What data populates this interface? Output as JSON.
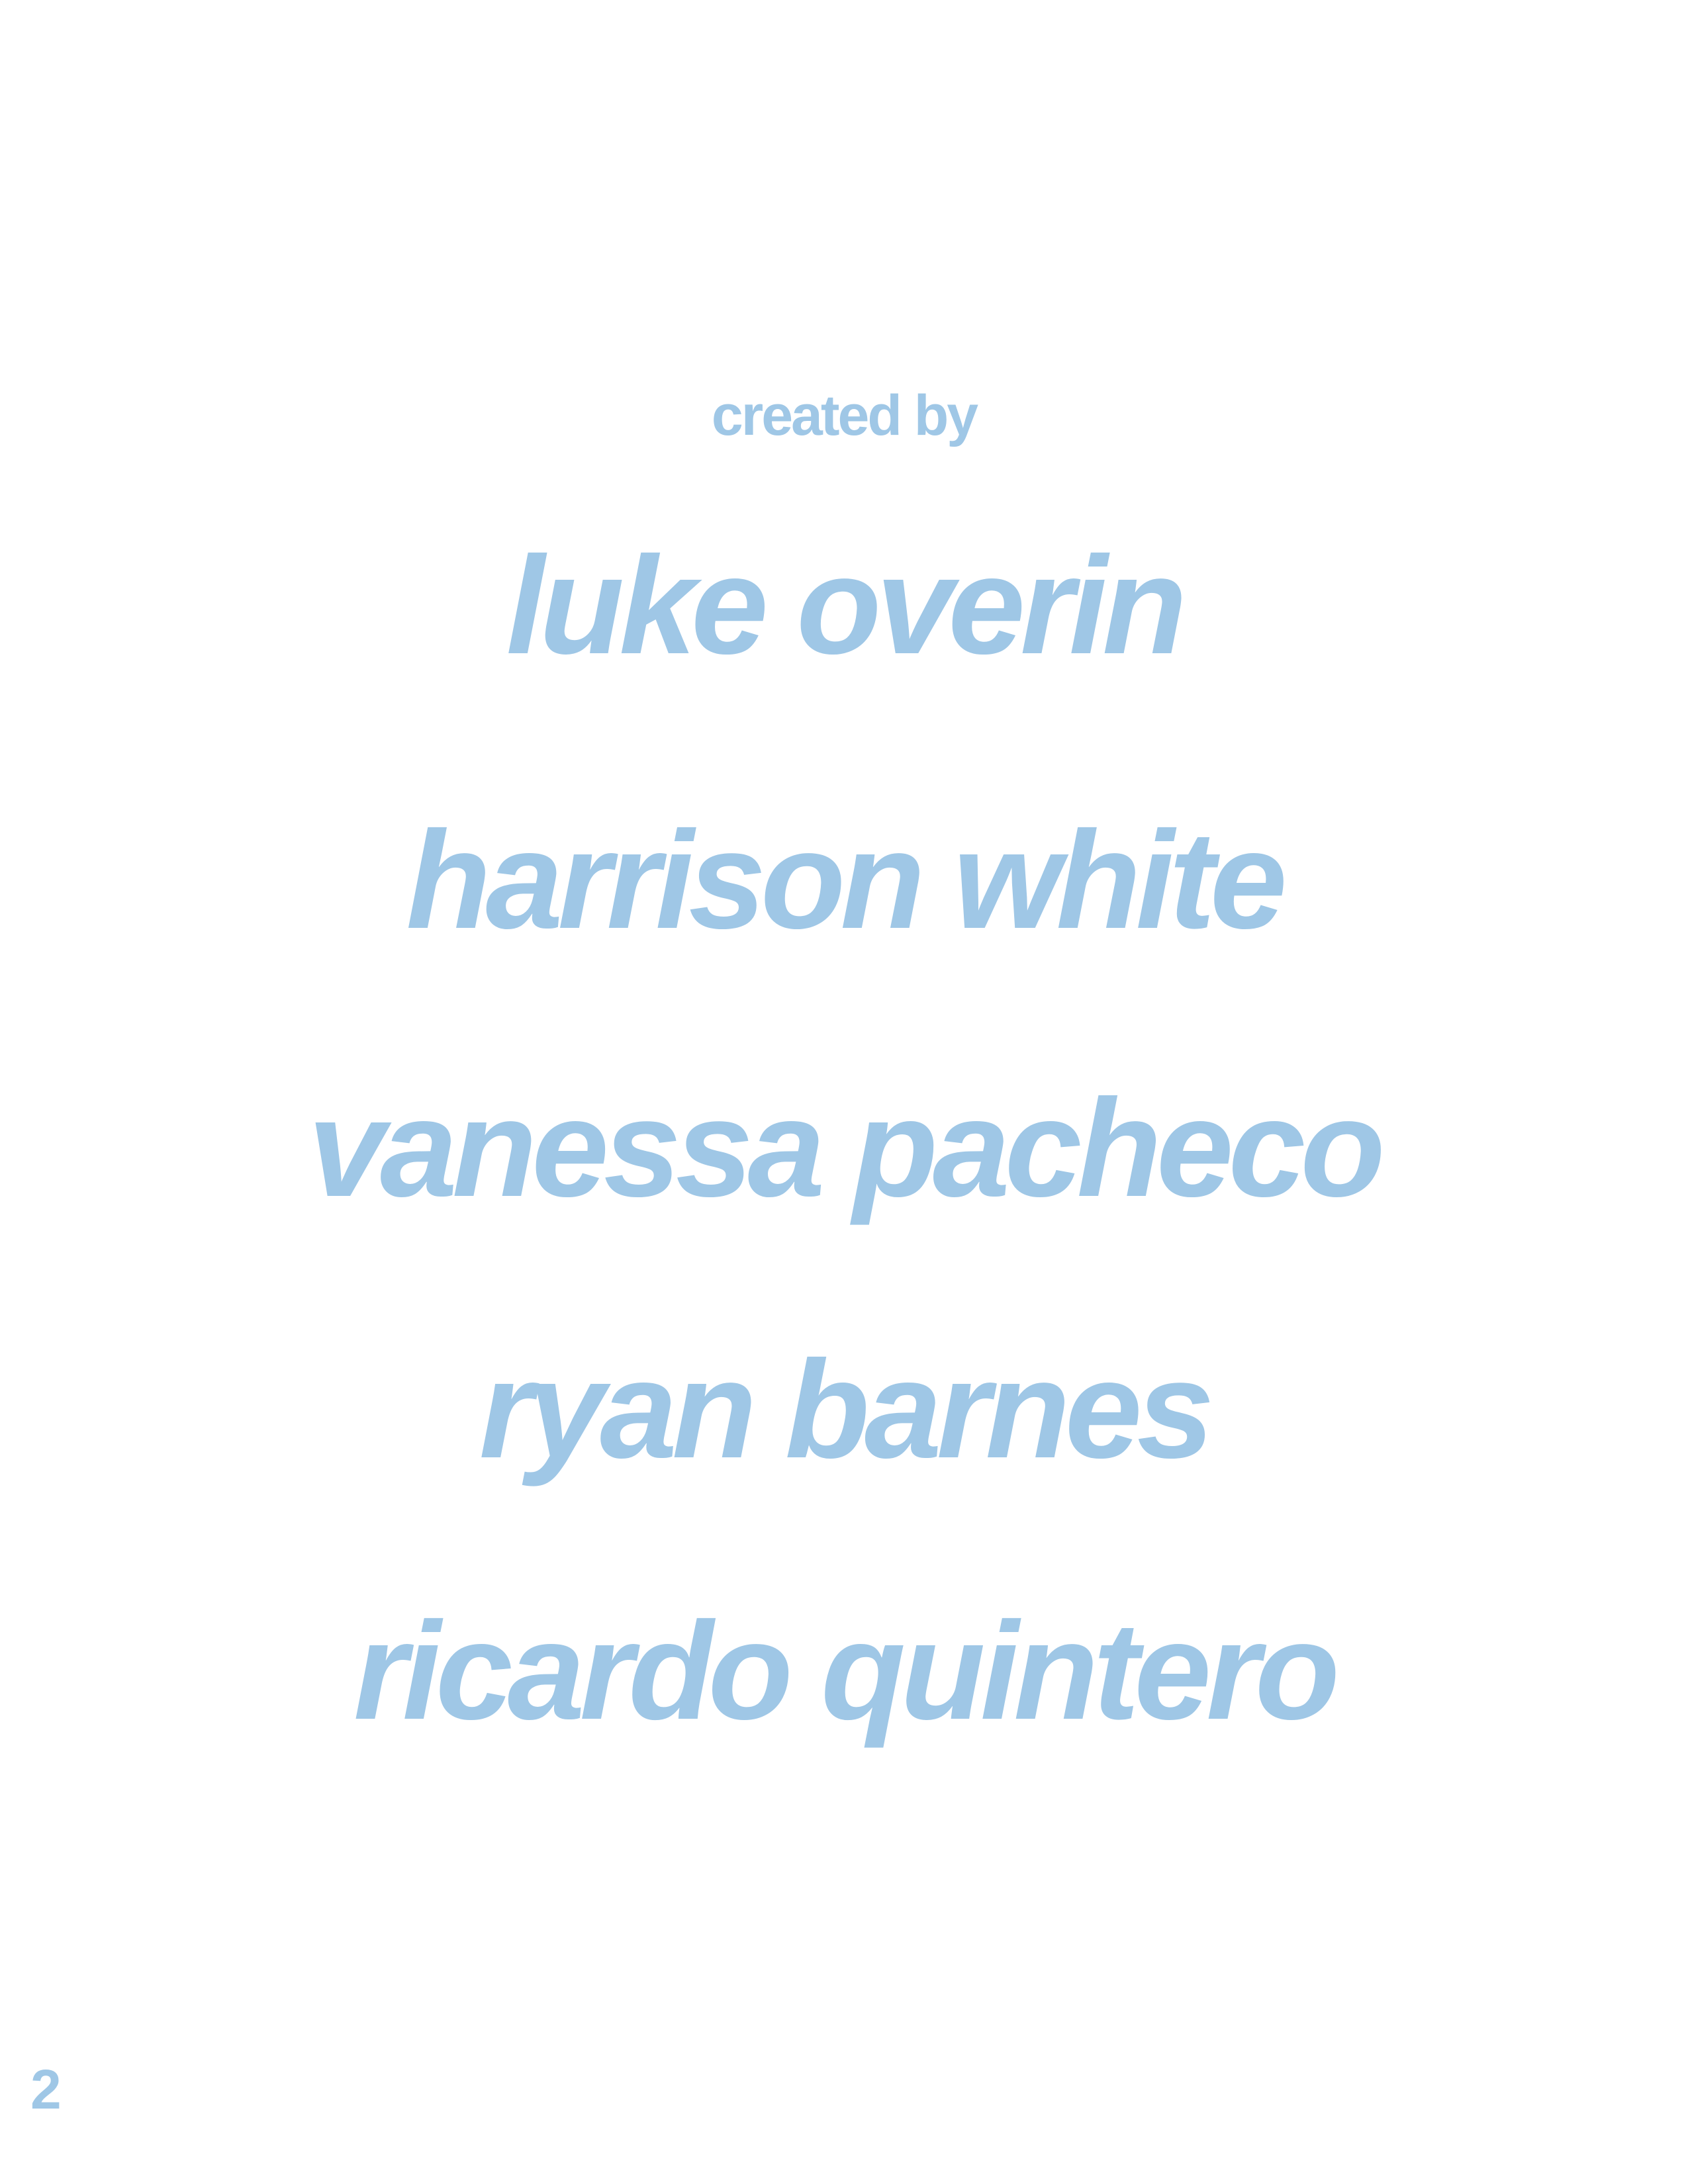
{
  "page": {
    "heading": "created by",
    "names": [
      "luke overin",
      "harrison white",
      "vanessa pacheco",
      "ryan barnes",
      "ricardo quintero"
    ],
    "page_number": "2"
  },
  "colors": {
    "text": "#9fc7e6",
    "background": "#ffffff"
  }
}
